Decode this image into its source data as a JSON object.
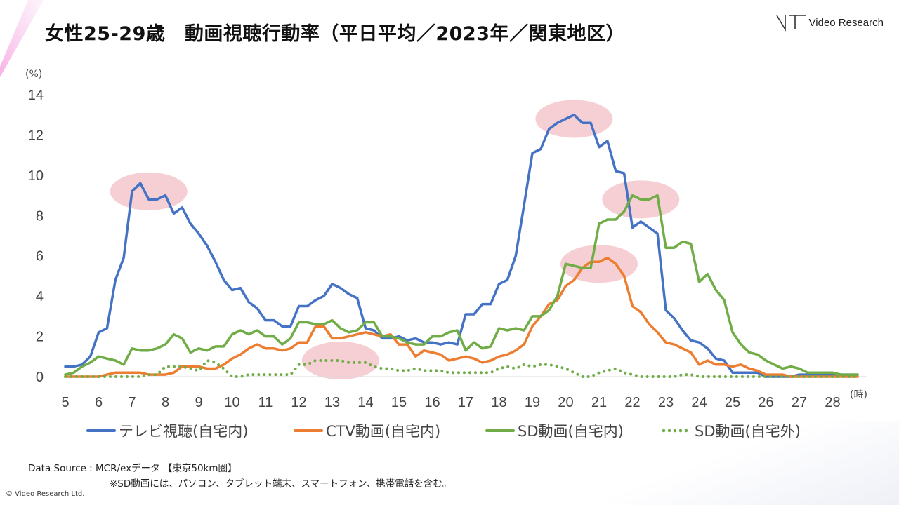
{
  "header": {
    "title": "女性25-29歳　動画視聴行動率（平日平均／2023年／関東地区）",
    "logo_text": "Video Research"
  },
  "footer": {
    "data_source": "Data Source : MCR/exデータ 【東京50km圏】",
    "note": "※SD動画には、パソコン、タブレット端末、スマートフォン、携帯電話を含む。",
    "copyright": "© Video Research  Ltd."
  },
  "chart_data": {
    "type": "line",
    "title": "",
    "ylabel": "(%)",
    "xlabel": "(時)",
    "ylim": [
      0,
      14
    ],
    "xlim": [
      5,
      29
    ],
    "yticks": [
      0,
      2,
      4,
      6,
      8,
      10,
      12,
      14
    ],
    "xtick_labels": [
      "5",
      "6",
      "7",
      "8",
      "9",
      "10",
      "11",
      "12",
      "13",
      "14",
      "15",
      "16",
      "17",
      "18",
      "19",
      "20",
      "21",
      "22",
      "23",
      "24",
      "25",
      "26",
      "27",
      "28"
    ],
    "grid": false,
    "legend_position": "bottom",
    "x": [
      5.0,
      5.25,
      5.5,
      5.75,
      6.0,
      6.25,
      6.5,
      6.75,
      7.0,
      7.25,
      7.5,
      7.75,
      8.0,
      8.25,
      8.5,
      8.75,
      9.0,
      9.25,
      9.5,
      9.75,
      10.0,
      10.25,
      10.5,
      10.75,
      11.0,
      11.25,
      11.5,
      11.75,
      12.0,
      12.25,
      12.5,
      12.75,
      13.0,
      13.25,
      13.5,
      13.75,
      14.0,
      14.25,
      14.5,
      14.75,
      15.0,
      15.25,
      15.5,
      15.75,
      16.0,
      16.25,
      16.5,
      16.75,
      17.0,
      17.25,
      17.5,
      17.75,
      18.0,
      18.25,
      18.5,
      18.75,
      19.0,
      19.25,
      19.5,
      19.75,
      20.0,
      20.25,
      20.5,
      20.75,
      21.0,
      21.25,
      21.5,
      21.75,
      22.0,
      22.25,
      22.5,
      22.75,
      23.0,
      23.25,
      23.5,
      23.75,
      24.0,
      24.25,
      24.5,
      24.75,
      25.0,
      25.25,
      25.5,
      25.75,
      26.0,
      26.25,
      26.5,
      26.75,
      27.0,
      27.25,
      27.5,
      27.75,
      28.0,
      28.25,
      28.5,
      28.75
    ],
    "series": [
      {
        "name": "テレビ視聴(自宅内)",
        "color": "#4472C4",
        "style": "solid",
        "values": [
          0.5,
          0.5,
          0.6,
          1.0,
          2.2,
          2.4,
          4.8,
          5.9,
          9.2,
          9.6,
          8.8,
          8.8,
          9.0,
          8.1,
          8.4,
          7.6,
          7.1,
          6.5,
          5.7,
          4.8,
          4.3,
          4.4,
          3.7,
          3.4,
          2.8,
          2.8,
          2.5,
          2.5,
          3.5,
          3.5,
          3.8,
          4.0,
          4.6,
          4.4,
          4.1,
          3.9,
          2.4,
          2.3,
          1.9,
          1.9,
          2.0,
          1.8,
          1.9,
          1.7,
          1.7,
          1.6,
          1.7,
          1.6,
          3.1,
          3.1,
          3.6,
          3.6,
          4.6,
          4.8,
          6.0,
          8.5,
          11.1,
          11.3,
          12.3,
          12.6,
          12.8,
          13.0,
          12.6,
          12.6,
          11.4,
          11.7,
          10.2,
          10.1,
          7.4,
          7.7,
          7.4,
          7.1,
          3.3,
          2.9,
          2.3,
          1.8,
          1.7,
          1.4,
          0.9,
          0.8,
          0.2,
          0.2,
          0.2,
          0.2,
          0.0,
          0.0,
          0.0,
          0.0,
          0.1,
          0.1,
          0.1,
          0.1,
          0.1,
          0.1,
          0.1,
          0.1
        ]
      },
      {
        "name": "CTV動画(自宅内)",
        "color": "#ED7D31",
        "style": "solid",
        "values": [
          0.0,
          0.0,
          0.0,
          0.0,
          0.0,
          0.1,
          0.2,
          0.2,
          0.2,
          0.2,
          0.1,
          0.1,
          0.1,
          0.2,
          0.5,
          0.5,
          0.5,
          0.4,
          0.4,
          0.6,
          0.9,
          1.1,
          1.4,
          1.6,
          1.4,
          1.4,
          1.3,
          1.4,
          1.7,
          1.7,
          2.5,
          2.5,
          1.9,
          1.9,
          2.0,
          2.1,
          2.2,
          2.1,
          2.0,
          2.1,
          1.6,
          1.6,
          1.0,
          1.3,
          1.2,
          1.1,
          0.8,
          0.9,
          1.0,
          0.9,
          0.7,
          0.8,
          1.0,
          1.1,
          1.3,
          1.6,
          2.5,
          3.0,
          3.6,
          3.8,
          4.5,
          4.8,
          5.4,
          5.7,
          5.7,
          5.9,
          5.6,
          5.0,
          3.5,
          3.2,
          2.6,
          2.2,
          1.7,
          1.6,
          1.4,
          1.2,
          0.6,
          0.8,
          0.6,
          0.6,
          0.5,
          0.6,
          0.4,
          0.3,
          0.1,
          0.1,
          0.1,
          0.0,
          0.0,
          0.0,
          0.0,
          0.0,
          0.0,
          0.0,
          0.0,
          0.0
        ]
      },
      {
        "name": "SD動画(自宅内)",
        "color": "#70AD47",
        "style": "solid",
        "values": [
          0.1,
          0.2,
          0.5,
          0.7,
          1.0,
          0.9,
          0.8,
          0.6,
          1.4,
          1.3,
          1.3,
          1.4,
          1.6,
          2.1,
          1.9,
          1.2,
          1.4,
          1.3,
          1.5,
          1.5,
          2.1,
          2.3,
          2.1,
          2.3,
          2.0,
          2.0,
          1.6,
          1.9,
          2.7,
          2.7,
          2.6,
          2.6,
          2.8,
          2.4,
          2.2,
          2.3,
          2.7,
          2.7,
          2.0,
          2.0,
          1.9,
          1.7,
          1.6,
          1.6,
          2.0,
          2.0,
          2.2,
          2.3,
          1.3,
          1.7,
          1.4,
          1.5,
          2.4,
          2.3,
          2.4,
          2.3,
          3.0,
          3.0,
          3.3,
          4.0,
          5.6,
          5.5,
          5.4,
          5.4,
          7.6,
          7.8,
          7.8,
          8.2,
          9.0,
          8.8,
          8.8,
          9.0,
          6.4,
          6.4,
          6.7,
          6.6,
          4.7,
          5.1,
          4.3,
          3.8,
          2.2,
          1.6,
          1.2,
          1.1,
          0.8,
          0.6,
          0.4,
          0.5,
          0.4,
          0.2,
          0.2,
          0.2,
          0.2,
          0.1,
          0.1,
          0.1
        ]
      },
      {
        "name": "SD動画(自宅外)",
        "color": "#70AD47",
        "style": "dotted",
        "values": [
          0.0,
          0.0,
          0.0,
          0.0,
          0.0,
          0.0,
          0.0,
          0.0,
          0.0,
          0.0,
          0.1,
          0.1,
          0.5,
          0.5,
          0.5,
          0.4,
          0.3,
          0.8,
          0.7,
          0.4,
          0.0,
          0.0,
          0.1,
          0.1,
          0.1,
          0.1,
          0.1,
          0.1,
          0.6,
          0.6,
          0.8,
          0.8,
          0.8,
          0.8,
          0.7,
          0.7,
          0.7,
          0.5,
          0.4,
          0.4,
          0.3,
          0.3,
          0.4,
          0.3,
          0.3,
          0.3,
          0.2,
          0.2,
          0.2,
          0.2,
          0.2,
          0.2,
          0.4,
          0.5,
          0.4,
          0.6,
          0.5,
          0.6,
          0.6,
          0.5,
          0.4,
          0.2,
          0.0,
          0.0,
          0.2,
          0.3,
          0.4,
          0.2,
          0.1,
          0.0,
          0.0,
          0.0,
          0.0,
          0.0,
          0.1,
          0.1,
          0.0,
          0.0,
          0.0,
          0.0,
          0.0,
          0.0,
          0.0,
          0.0,
          0.0,
          0.0,
          0.0,
          0.0,
          0.0,
          0.0,
          0.0,
          0.0,
          0.0,
          0.0,
          0.0,
          0.0
        ]
      }
    ],
    "highlights": [
      {
        "x": 7.5,
        "y": 9.2
      },
      {
        "x": 13.25,
        "y": 0.8
      },
      {
        "x": 20.25,
        "y": 12.8
      },
      {
        "x": 22.25,
        "y": 8.8
      },
      {
        "x": 21.0,
        "y": 5.6
      }
    ],
    "highlight_color": "#F4C7CC"
  }
}
